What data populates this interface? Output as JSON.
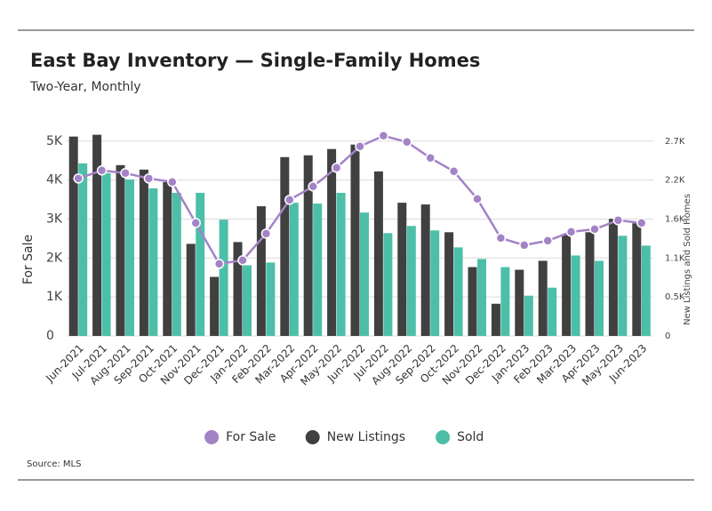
{
  "chart_data": {
    "type": "bar",
    "title": "East Bay Inventory — Single-Family Homes",
    "subtitle": "Two-Year, Monthly",
    "y_label": "For Sale",
    "y2_label": "New Listings and Sold Homes",
    "source": "Source: MLS",
    "legend": "bottom",
    "grid": true,
    "categories": [
      "Jun-2021",
      "Jul-2021",
      "Aug-2021",
      "Sep-2021",
      "Oct-2021",
      "Nov-2021",
      "Dec-2021",
      "Jan-2022",
      "Feb-2022",
      "Mar-2022",
      "Apr-2022",
      "May-2022",
      "Jun-2022",
      "Jul-2022",
      "Aug-2022",
      "Sep-2022",
      "Oct-2022",
      "Nov-2022",
      "Dec-2022",
      "Jan-2023",
      "Feb-2023",
      "Mar-2023",
      "Apr-2023",
      "May-2023",
      "Jun-2023"
    ],
    "ylim": [
      0,
      5200
    ],
    "yticks": [
      0,
      {
        "value": 1000,
        "label": "1K"
      },
      {
        "value": 2000,
        "label": "2K"
      },
      {
        "value": 3000,
        "label": "3K"
      },
      {
        "value": 4000,
        "label": "4K"
      },
      {
        "value": 5000,
        "label": "5K"
      }
    ],
    "y2lim": [
      0,
      2808
    ],
    "y2ticks": [
      0,
      {
        "value": 540,
        "label": "0.5K"
      },
      {
        "value": 1080,
        "label": "1.1K"
      },
      {
        "value": 1620,
        "label": "1.6K"
      },
      {
        "value": 2160,
        "label": "2.2K"
      },
      {
        "value": 2700,
        "label": "2.7K"
      }
    ],
    "series": [
      {
        "name": "For Sale",
        "type": "line",
        "color": "#a383c6",
        "values": [
          4041,
          4247,
          4178,
          4041,
          3950,
          2900,
          1849,
          1941,
          2626,
          3493,
          3836,
          4315,
          4863,
          5137,
          4977,
          4566,
          4224,
          3516,
          2511,
          2329,
          2443,
          2671,
          2740,
          2968,
          2900
        ]
      },
      {
        "name": "New Listings",
        "type": "bar",
        "axis": "y2",
        "color": "#404040",
        "values": [
          2763,
          2788,
          2367,
          2305,
          2131,
          1276,
          818,
          1301,
          1797,
          2478,
          2503,
          2590,
          2652,
          2280,
          1846,
          1822,
          1437,
          954,
          446,
          917,
          1041,
          1413,
          1437,
          1623,
          1561
        ]
      },
      {
        "name": "Sold",
        "type": "bar",
        "axis": "y2",
        "color": "#4dbfa8",
        "values": [
          2392,
          2255,
          2168,
          2045,
          1983,
          1983,
          1611,
          979,
          1017,
          1846,
          1834,
          1983,
          1710,
          1425,
          1524,
          1462,
          1227,
          1066,
          954,
          558,
          669,
          1115,
          1041,
          1388,
          1252
        ]
      }
    ]
  }
}
